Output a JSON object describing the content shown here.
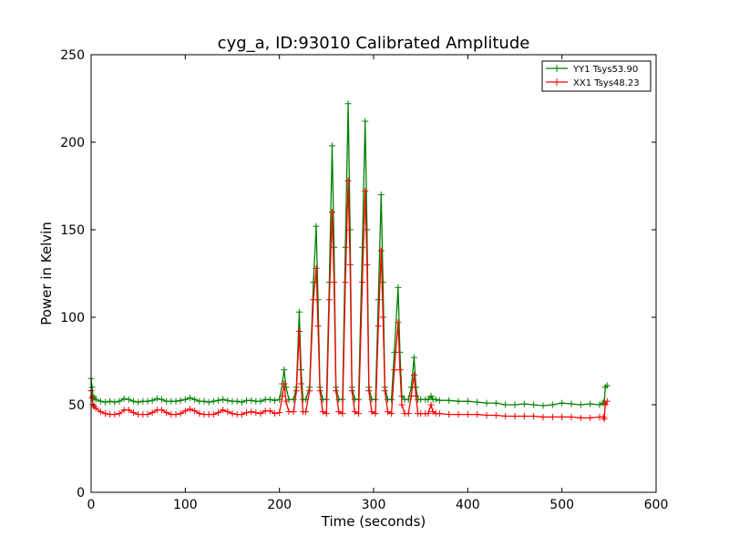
{
  "chart_data": {
    "type": "line",
    "title": "cyg_a, ID:93010 Calibrated Amplitude",
    "xlabel": "Time (seconds)",
    "ylabel": "Power in Kelvin",
    "xlim": [
      0,
      600
    ],
    "ylim": [
      0,
      250
    ],
    "xticks": [
      0,
      100,
      200,
      300,
      400,
      500,
      600
    ],
    "yticks": [
      0,
      50,
      100,
      150,
      200,
      250
    ],
    "grid": false,
    "legend_position": "top-right",
    "marker": "+",
    "series": [
      {
        "name": "YY1 Tsys53.90",
        "color": "#008000",
        "x": [
          0,
          1,
          2,
          3,
          5,
          10,
          15,
          20,
          25,
          30,
          35,
          40,
          45,
          50,
          55,
          60,
          65,
          70,
          75,
          80,
          85,
          90,
          95,
          100,
          105,
          110,
          115,
          120,
          125,
          130,
          135,
          140,
          145,
          150,
          155,
          160,
          165,
          170,
          175,
          180,
          185,
          190,
          195,
          200,
          203,
          205,
          207,
          210,
          215,
          218,
          221,
          223,
          225,
          228,
          232,
          236,
          239,
          241,
          243,
          246,
          250,
          253,
          256,
          258,
          260,
          263,
          267,
          270,
          273,
          275,
          277,
          280,
          284,
          288,
          291,
          293,
          295,
          298,
          302,
          305,
          308,
          310,
          312,
          315,
          319,
          322,
          326,
          328,
          330,
          333,
          337,
          340,
          343,
          345,
          347,
          350,
          355,
          358,
          361,
          363,
          366,
          370,
          380,
          390,
          400,
          410,
          420,
          430,
          440,
          450,
          460,
          470,
          480,
          490,
          500,
          510,
          520,
          530,
          540,
          544,
          545,
          546,
          548
        ],
        "y": [
          65,
          60,
          55,
          54,
          53,
          52,
          51.5,
          52,
          51.5,
          52,
          53.5,
          53,
          52,
          51.5,
          52,
          52,
          52.5,
          53.5,
          53,
          52,
          52,
          52,
          52.5,
          53,
          54,
          53,
          52,
          52,
          51.5,
          52,
          52.5,
          53,
          52.5,
          52,
          52,
          51.5,
          52.5,
          52.5,
          52,
          52,
          53,
          53,
          52.5,
          53,
          62,
          70,
          60,
          53,
          53,
          60,
          103,
          70,
          53,
          53,
          60,
          120,
          152,
          110,
          60,
          53,
          53,
          120,
          198,
          140,
          60,
          53,
          53,
          140,
          222,
          150,
          60,
          53,
          53,
          140,
          212,
          150,
          60,
          53,
          53,
          110,
          170,
          120,
          60,
          53,
          53,
          80,
          117,
          80,
          55,
          53,
          53,
          60,
          77,
          60,
          53,
          53,
          53,
          53,
          55,
          53,
          53,
          52.5,
          52.5,
          52,
          52,
          51.5,
          51,
          51,
          50,
          50,
          50.5,
          50,
          49.5,
          50,
          51,
          50.5,
          50,
          50.5,
          50,
          51,
          52,
          60,
          61
        ]
      },
      {
        "name": "XX1 Tsys48.23",
        "color": "#ff0000",
        "x": [
          0,
          1,
          2,
          3,
          5,
          10,
          15,
          20,
          25,
          30,
          35,
          40,
          45,
          50,
          55,
          60,
          65,
          70,
          75,
          80,
          85,
          90,
          95,
          100,
          105,
          110,
          115,
          120,
          125,
          130,
          135,
          140,
          145,
          150,
          155,
          160,
          165,
          170,
          175,
          180,
          185,
          190,
          195,
          200,
          203,
          205,
          207,
          210,
          215,
          218,
          221,
          223,
          225,
          228,
          232,
          236,
          239,
          241,
          243,
          246,
          250,
          253,
          256,
          258,
          260,
          263,
          267,
          270,
          273,
          275,
          277,
          280,
          284,
          288,
          291,
          293,
          295,
          298,
          302,
          305,
          308,
          310,
          312,
          315,
          319,
          322,
          326,
          328,
          330,
          333,
          337,
          340,
          343,
          345,
          347,
          350,
          355,
          358,
          361,
          363,
          366,
          370,
          380,
          390,
          400,
          410,
          420,
          430,
          440,
          450,
          460,
          470,
          480,
          490,
          500,
          510,
          520,
          530,
          540,
          544,
          545,
          546,
          548
        ],
        "y": [
          58,
          54,
          50,
          49,
          48,
          46,
          45,
          44.5,
          44.5,
          45,
          47,
          47,
          45.5,
          44.5,
          44.5,
          44.5,
          45.5,
          47,
          47,
          45.5,
          44.5,
          44.5,
          45,
          46.5,
          47.5,
          46.5,
          45,
          44.5,
          44.5,
          44.5,
          45.5,
          47,
          46,
          45,
          44.5,
          44.5,
          45.5,
          46,
          45.5,
          45,
          46.5,
          46.5,
          45,
          45.5,
          55,
          62,
          52,
          46,
          46,
          58,
          92,
          62,
          46,
          46,
          58,
          110,
          128,
          95,
          58,
          46,
          45,
          110,
          160,
          120,
          58,
          46,
          45,
          120,
          178,
          130,
          58,
          46,
          45,
          120,
          172,
          130,
          58,
          46,
          45,
          95,
          138,
          100,
          58,
          46,
          45,
          70,
          97,
          70,
          50,
          45,
          45,
          55,
          67,
          55,
          45,
          45,
          45,
          45,
          50,
          46,
          45,
          45,
          44.5,
          44.5,
          44.5,
          44.5,
          44,
          44,
          43.5,
          43.5,
          43.5,
          43.5,
          43,
          43,
          43,
          43,
          42.5,
          42.5,
          43,
          43,
          42,
          50,
          52
        ]
      }
    ]
  }
}
